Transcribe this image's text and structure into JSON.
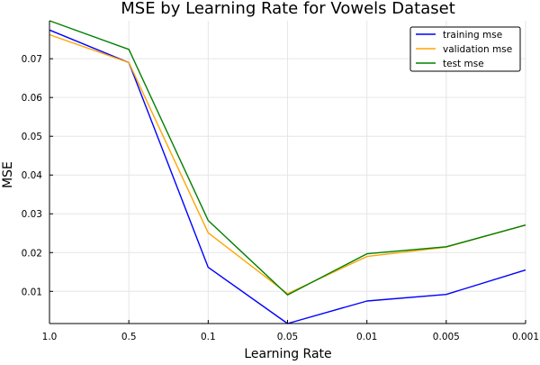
{
  "chart_data": {
    "type": "line",
    "title": "MSE by Learning Rate for Vowels Dataset",
    "xlabel": "Learning Rate",
    "ylabel": "MSE",
    "categories": [
      "1.0",
      "0.5",
      "0.1",
      "0.05",
      "0.01",
      "0.005",
      "0.001"
    ],
    "yticks": [
      "0.01",
      "0.02",
      "0.03",
      "0.04",
      "0.05",
      "0.06",
      "0.07"
    ],
    "ytick_values": [
      0.01,
      0.02,
      0.03,
      0.04,
      0.05,
      0.06,
      0.07
    ],
    "ylim": [
      0.0017,
      0.0798
    ],
    "grid": true,
    "legend_position": "top-right",
    "series": [
      {
        "name": "training mse",
        "color": "#0000ff",
        "values": [
          0.0774,
          0.069,
          0.0162,
          0.0017,
          0.0075,
          0.0092,
          0.0155
        ]
      },
      {
        "name": "validation mse",
        "color": "#ffa500",
        "values": [
          0.0762,
          0.069,
          0.0251,
          0.0094,
          0.019,
          0.0214,
          0.0271
        ]
      },
      {
        "name": "test mse",
        "color": "#008000",
        "values": [
          0.0798,
          0.0724,
          0.0283,
          0.0091,
          0.0197,
          0.0215,
          0.0271
        ]
      }
    ]
  }
}
